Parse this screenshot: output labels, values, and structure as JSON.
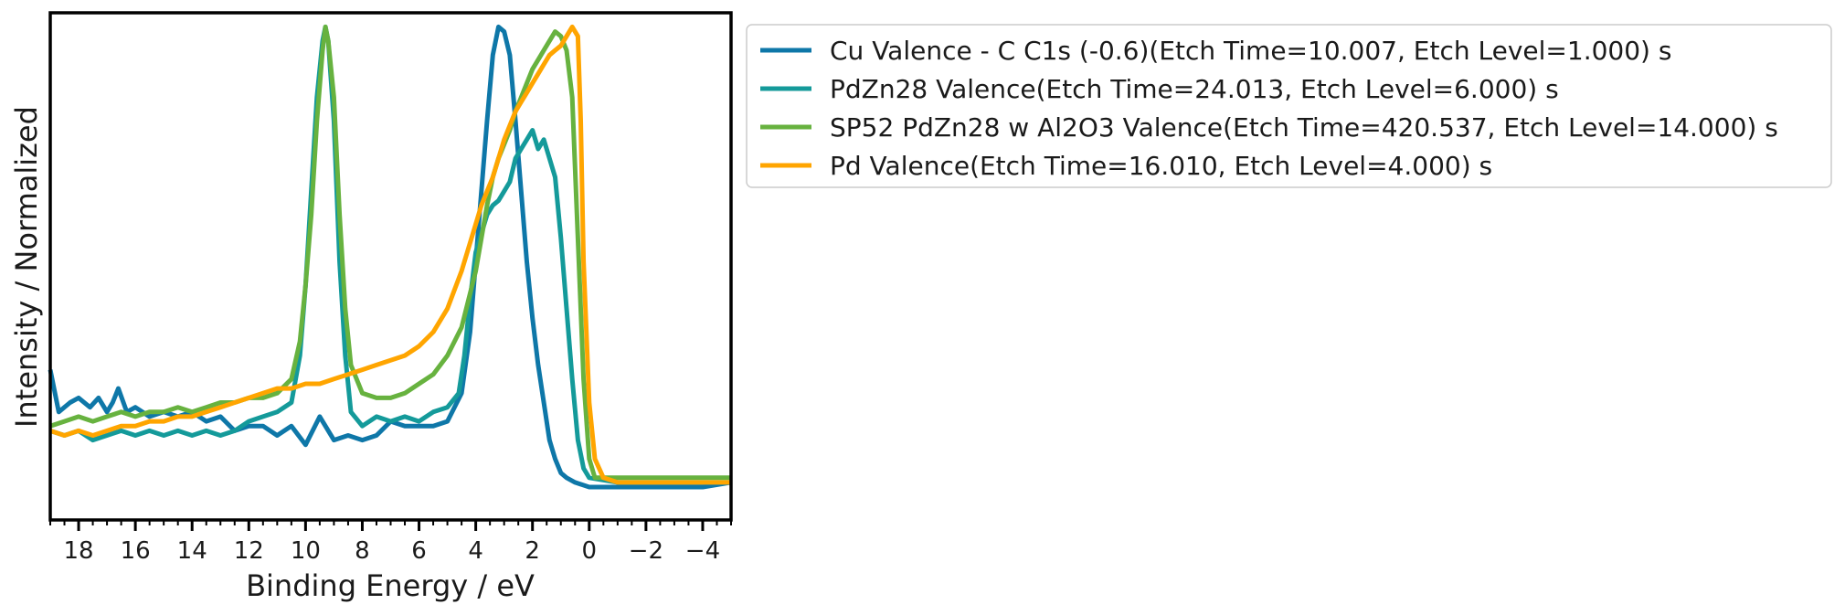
{
  "chart_data": {
    "type": "line",
    "title": "",
    "xlabel": "Binding Energy / eV",
    "ylabel": "Intensity / Normalized",
    "xlim": [
      19.0,
      -5.0
    ],
    "ylim": [
      -0.05,
      1.03
    ],
    "x_inverted": true,
    "x_ticks": [
      18,
      16,
      14,
      12,
      10,
      8,
      6,
      4,
      2,
      0,
      -2,
      -4
    ],
    "x_tick_labels": [
      "18",
      "16",
      "14",
      "12",
      "10",
      "8",
      "6",
      "4",
      "2",
      "0",
      "−2",
      "−4"
    ],
    "y_ticks_shown": false,
    "grid": false,
    "legend_position": "outside-right-top",
    "series": [
      {
        "name": "Cu Valence - C C1s (-0.6)(Etch Time=10.007, Etch Level=1.000) s",
        "color": "#0e77a8",
        "points": [
          [
            19.0,
            0.27
          ],
          [
            18.7,
            0.18
          ],
          [
            18.3,
            0.2
          ],
          [
            18.0,
            0.21
          ],
          [
            17.6,
            0.19
          ],
          [
            17.3,
            0.21
          ],
          [
            17.0,
            0.18
          ],
          [
            16.8,
            0.2
          ],
          [
            16.6,
            0.23
          ],
          [
            16.3,
            0.18
          ],
          [
            16.0,
            0.19
          ],
          [
            15.5,
            0.17
          ],
          [
            15.0,
            0.18
          ],
          [
            14.5,
            0.17
          ],
          [
            14.0,
            0.18
          ],
          [
            13.5,
            0.16
          ],
          [
            13.0,
            0.17
          ],
          [
            12.5,
            0.14
          ],
          [
            12.0,
            0.15
          ],
          [
            11.5,
            0.15
          ],
          [
            11.0,
            0.13
          ],
          [
            10.5,
            0.15
          ],
          [
            10.0,
            0.11
          ],
          [
            9.5,
            0.17
          ],
          [
            9.0,
            0.12
          ],
          [
            8.5,
            0.13
          ],
          [
            8.0,
            0.12
          ],
          [
            7.5,
            0.13
          ],
          [
            7.0,
            0.16
          ],
          [
            6.5,
            0.15
          ],
          [
            6.0,
            0.15
          ],
          [
            5.5,
            0.15
          ],
          [
            5.0,
            0.16
          ],
          [
            4.5,
            0.22
          ],
          [
            4.2,
            0.35
          ],
          [
            4.0,
            0.5
          ],
          [
            3.8,
            0.65
          ],
          [
            3.6,
            0.8
          ],
          [
            3.4,
            0.94
          ],
          [
            3.2,
            1.0
          ],
          [
            3.0,
            0.99
          ],
          [
            2.8,
            0.94
          ],
          [
            2.6,
            0.8
          ],
          [
            2.4,
            0.65
          ],
          [
            2.2,
            0.5
          ],
          [
            2.0,
            0.38
          ],
          [
            1.8,
            0.28
          ],
          [
            1.6,
            0.2
          ],
          [
            1.4,
            0.12
          ],
          [
            1.2,
            0.08
          ],
          [
            1.0,
            0.05
          ],
          [
            0.8,
            0.04
          ],
          [
            0.5,
            0.03
          ],
          [
            0.0,
            0.02
          ],
          [
            -1.0,
            0.02
          ],
          [
            -2.0,
            0.02
          ],
          [
            -3.0,
            0.02
          ],
          [
            -4.0,
            0.02
          ],
          [
            -5.0,
            0.03
          ]
        ]
      },
      {
        "name": "PdZn28 Valence(Etch Time=24.013, Etch Level=6.000) s",
        "color": "#149a9a",
        "points": [
          [
            19.0,
            0.14
          ],
          [
            18.5,
            0.13
          ],
          [
            18.0,
            0.14
          ],
          [
            17.5,
            0.12
          ],
          [
            17.0,
            0.13
          ],
          [
            16.5,
            0.14
          ],
          [
            16.0,
            0.13
          ],
          [
            15.5,
            0.14
          ],
          [
            15.0,
            0.13
          ],
          [
            14.5,
            0.14
          ],
          [
            14.0,
            0.13
          ],
          [
            13.5,
            0.14
          ],
          [
            13.0,
            0.13
          ],
          [
            12.5,
            0.14
          ],
          [
            12.0,
            0.16
          ],
          [
            11.5,
            0.17
          ],
          [
            11.0,
            0.18
          ],
          [
            10.5,
            0.2
          ],
          [
            10.2,
            0.3
          ],
          [
            10.0,
            0.45
          ],
          [
            9.8,
            0.65
          ],
          [
            9.6,
            0.85
          ],
          [
            9.4,
            0.97
          ],
          [
            9.3,
            1.0
          ],
          [
            9.2,
            0.97
          ],
          [
            9.0,
            0.8
          ],
          [
            8.8,
            0.5
          ],
          [
            8.6,
            0.3
          ],
          [
            8.4,
            0.18
          ],
          [
            8.0,
            0.15
          ],
          [
            7.5,
            0.17
          ],
          [
            7.0,
            0.16
          ],
          [
            6.5,
            0.17
          ],
          [
            6.0,
            0.16
          ],
          [
            5.5,
            0.18
          ],
          [
            5.0,
            0.19
          ],
          [
            4.6,
            0.22
          ],
          [
            4.4,
            0.3
          ],
          [
            4.2,
            0.42
          ],
          [
            4.0,
            0.52
          ],
          [
            3.8,
            0.56
          ],
          [
            3.6,
            0.6
          ],
          [
            3.4,
            0.62
          ],
          [
            3.2,
            0.63
          ],
          [
            3.0,
            0.65
          ],
          [
            2.8,
            0.67
          ],
          [
            2.6,
            0.72
          ],
          [
            2.4,
            0.74
          ],
          [
            2.2,
            0.76
          ],
          [
            2.0,
            0.78
          ],
          [
            1.8,
            0.74
          ],
          [
            1.6,
            0.76
          ],
          [
            1.4,
            0.72
          ],
          [
            1.2,
            0.68
          ],
          [
            1.0,
            0.55
          ],
          [
            0.8,
            0.4
          ],
          [
            0.6,
            0.25
          ],
          [
            0.4,
            0.12
          ],
          [
            0.2,
            0.06
          ],
          [
            0.0,
            0.04
          ],
          [
            -1.0,
            0.03
          ],
          [
            -2.0,
            0.03
          ],
          [
            -3.0,
            0.03
          ],
          [
            -4.0,
            0.03
          ],
          [
            -5.0,
            0.03
          ]
        ]
      },
      {
        "name": "SP52 PdZn28 w Al2O3 Valence(Etch Time=420.537, Etch Level=14.000) s",
        "color": "#67b23f",
        "points": [
          [
            19.0,
            0.15
          ],
          [
            18.5,
            0.16
          ],
          [
            18.0,
            0.17
          ],
          [
            17.5,
            0.16
          ],
          [
            17.0,
            0.17
          ],
          [
            16.5,
            0.18
          ],
          [
            16.0,
            0.17
          ],
          [
            15.5,
            0.18
          ],
          [
            15.0,
            0.18
          ],
          [
            14.5,
            0.19
          ],
          [
            14.0,
            0.18
          ],
          [
            13.5,
            0.19
          ],
          [
            13.0,
            0.2
          ],
          [
            12.5,
            0.2
          ],
          [
            12.0,
            0.21
          ],
          [
            11.5,
            0.21
          ],
          [
            11.0,
            0.22
          ],
          [
            10.5,
            0.25
          ],
          [
            10.2,
            0.33
          ],
          [
            10.0,
            0.45
          ],
          [
            9.8,
            0.6
          ],
          [
            9.6,
            0.8
          ],
          [
            9.4,
            0.95
          ],
          [
            9.3,
            1.0
          ],
          [
            9.2,
            0.97
          ],
          [
            9.0,
            0.85
          ],
          [
            8.8,
            0.6
          ],
          [
            8.6,
            0.4
          ],
          [
            8.4,
            0.28
          ],
          [
            8.0,
            0.22
          ],
          [
            7.5,
            0.21
          ],
          [
            7.0,
            0.21
          ],
          [
            6.5,
            0.22
          ],
          [
            6.0,
            0.24
          ],
          [
            5.5,
            0.26
          ],
          [
            5.0,
            0.3
          ],
          [
            4.5,
            0.36
          ],
          [
            4.0,
            0.48
          ],
          [
            3.8,
            0.55
          ],
          [
            3.6,
            0.62
          ],
          [
            3.4,
            0.68
          ],
          [
            3.2,
            0.72
          ],
          [
            3.0,
            0.75
          ],
          [
            2.8,
            0.78
          ],
          [
            2.6,
            0.82
          ],
          [
            2.4,
            0.85
          ],
          [
            2.2,
            0.88
          ],
          [
            2.0,
            0.91
          ],
          [
            1.8,
            0.93
          ],
          [
            1.6,
            0.95
          ],
          [
            1.4,
            0.97
          ],
          [
            1.2,
            0.99
          ],
          [
            1.0,
            0.98
          ],
          [
            0.8,
            0.95
          ],
          [
            0.6,
            0.85
          ],
          [
            0.4,
            0.55
          ],
          [
            0.2,
            0.25
          ],
          [
            0.0,
            0.08
          ],
          [
            -0.2,
            0.04
          ],
          [
            -1.0,
            0.04
          ],
          [
            -2.0,
            0.04
          ],
          [
            -3.0,
            0.04
          ],
          [
            -4.0,
            0.04
          ],
          [
            -5.0,
            0.04
          ]
        ]
      },
      {
        "name": "Pd Valence(Etch Time=16.010, Etch Level=4.000) s",
        "color": "#ffa500",
        "points": [
          [
            19.0,
            0.14
          ],
          [
            18.5,
            0.13
          ],
          [
            18.0,
            0.14
          ],
          [
            17.5,
            0.13
          ],
          [
            17.0,
            0.14
          ],
          [
            16.5,
            0.15
          ],
          [
            16.0,
            0.15
          ],
          [
            15.5,
            0.16
          ],
          [
            15.0,
            0.16
          ],
          [
            14.5,
            0.17
          ],
          [
            14.0,
            0.17
          ],
          [
            13.5,
            0.18
          ],
          [
            13.0,
            0.19
          ],
          [
            12.5,
            0.2
          ],
          [
            12.0,
            0.21
          ],
          [
            11.5,
            0.22
          ],
          [
            11.0,
            0.23
          ],
          [
            10.5,
            0.23
          ],
          [
            10.0,
            0.24
          ],
          [
            9.5,
            0.24
          ],
          [
            9.0,
            0.25
          ],
          [
            8.5,
            0.26
          ],
          [
            8.0,
            0.27
          ],
          [
            7.5,
            0.28
          ],
          [
            7.0,
            0.29
          ],
          [
            6.5,
            0.3
          ],
          [
            6.0,
            0.32
          ],
          [
            5.5,
            0.35
          ],
          [
            5.0,
            0.4
          ],
          [
            4.5,
            0.48
          ],
          [
            4.0,
            0.58
          ],
          [
            3.8,
            0.62
          ],
          [
            3.6,
            0.65
          ],
          [
            3.4,
            0.68
          ],
          [
            3.2,
            0.72
          ],
          [
            3.0,
            0.76
          ],
          [
            2.8,
            0.79
          ],
          [
            2.6,
            0.82
          ],
          [
            2.4,
            0.84
          ],
          [
            2.2,
            0.86
          ],
          [
            2.0,
            0.88
          ],
          [
            1.8,
            0.9
          ],
          [
            1.6,
            0.92
          ],
          [
            1.4,
            0.94
          ],
          [
            1.2,
            0.95
          ],
          [
            1.0,
            0.96
          ],
          [
            0.8,
            0.98
          ],
          [
            0.6,
            1.0
          ],
          [
            0.4,
            0.98
          ],
          [
            0.3,
            0.8
          ],
          [
            0.2,
            0.5
          ],
          [
            0.0,
            0.2
          ],
          [
            -0.2,
            0.08
          ],
          [
            -0.5,
            0.04
          ],
          [
            -1.0,
            0.03
          ],
          [
            -2.0,
            0.03
          ],
          [
            -3.0,
            0.03
          ],
          [
            -4.0,
            0.03
          ],
          [
            -5.0,
            0.03
          ]
        ]
      }
    ]
  }
}
